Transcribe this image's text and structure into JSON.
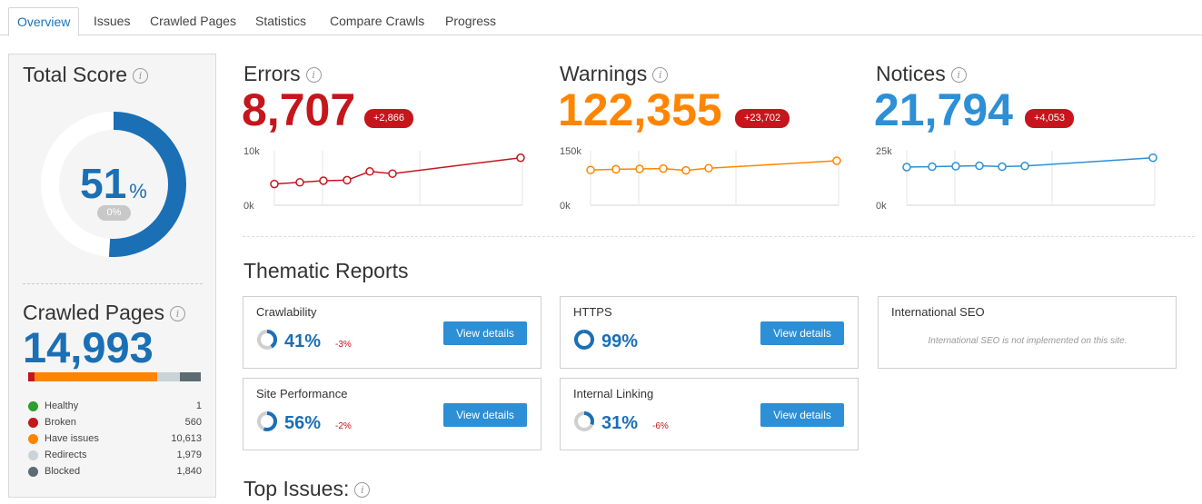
{
  "tabs": [
    {
      "label": "Overview",
      "active": true
    },
    {
      "label": "Issues"
    },
    {
      "label": "Crawled Pages"
    },
    {
      "label": "Statistics"
    },
    {
      "label": "Compare Crawls"
    },
    {
      "label": "Progress"
    }
  ],
  "total_score": {
    "title": "Total Score",
    "value": "51",
    "unit": "%",
    "delta": "0%",
    "fraction": 0.51,
    "color": "#1a6fb5"
  },
  "crawled_pages": {
    "title": "Crawled Pages",
    "value": "14,993",
    "legend": [
      {
        "label": "Healthy",
        "value": "1",
        "count": 1,
        "color": "#2ca02c"
      },
      {
        "label": "Broken",
        "value": "560",
        "count": 560,
        "color": "#c4161c"
      },
      {
        "label": "Have issues",
        "value": "10,613",
        "count": 10613,
        "color": "#ff8500"
      },
      {
        "label": "Redirects",
        "value": "1,979",
        "count": 1979,
        "color": "#c9d3d8"
      },
      {
        "label": "Blocked",
        "value": "1,840",
        "count": 1840,
        "color": "#5d6b73"
      }
    ]
  },
  "metrics": [
    {
      "title": "Errors",
      "value": "8,707",
      "delta": "+2,866",
      "color": "#c4161c",
      "axis_max": "10k",
      "axis_min": "0k",
      "max": 10000,
      "points": [
        3900,
        4200,
        4500,
        4600,
        6200,
        5800,
        8707
      ]
    },
    {
      "title": "Warnings",
      "value": "122,355",
      "delta": "+23,702",
      "color": "#ff8500",
      "axis_max": "150k",
      "axis_min": "0k",
      "max": 150000,
      "points": [
        97000,
        99000,
        100000,
        101000,
        96000,
        102000,
        122355
      ]
    },
    {
      "title": "Notices",
      "value": "21,794",
      "delta": "+4,053",
      "color": "#2d8fd5",
      "axis_max": "25k",
      "axis_min": "0k",
      "max": 25000,
      "points": [
        17500,
        17700,
        17900,
        18100,
        17700,
        18000,
        21794
      ]
    }
  ],
  "thematic": {
    "title": "Thematic Reports",
    "button_label": "View details",
    "reports": [
      {
        "name": "Crawlability",
        "pct": "41%",
        "fraction": 0.41,
        "change": "-3%"
      },
      {
        "name": "HTTPS",
        "pct": "99%",
        "fraction": 0.99,
        "change": ""
      },
      {
        "name": "International SEO",
        "note": "International SEO is not implemented on this site."
      },
      {
        "name": "Site Performance",
        "pct": "56%",
        "fraction": 0.56,
        "change": "-2%"
      },
      {
        "name": "Internal Linking",
        "pct": "31%",
        "fraction": 0.31,
        "change": "-6%"
      }
    ]
  },
  "top_issues": {
    "title": "Top Issues:"
  }
}
